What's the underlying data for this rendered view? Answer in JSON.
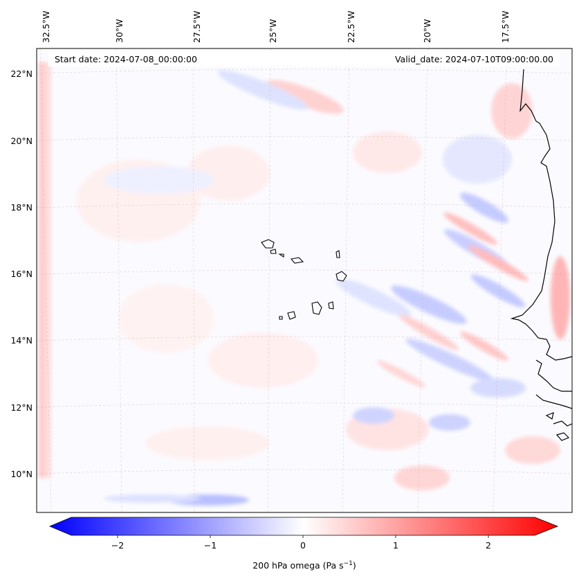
{
  "header": {
    "start_date": "Start date: 2024-07-08_00:00:00",
    "valid_date": "Valid_date: 2024-07-10T09:00:00.00"
  },
  "map": {
    "lon_ticks": [
      "32.5°W",
      "30°W",
      "27.5°W",
      "25°W",
      "22.5°W",
      "20°W",
      "17.5°W"
    ],
    "lat_ticks": [
      "22°N",
      "20°N",
      "18°N",
      "16°N",
      "14°N",
      "12°N",
      "10°N"
    ],
    "field": "200 hPa omega"
  },
  "colorbar": {
    "tick_labels": [
      "−2",
      "−1",
      "0",
      "1",
      "2"
    ],
    "tick_values": [
      -2,
      -1,
      0,
      1,
      2
    ],
    "range": [
      -2.5,
      2.5
    ],
    "label_main": "200 hPa omega (Pa s",
    "label_exp": "−1",
    "label_close": ")",
    "colors": {
      "low": "#0000ff",
      "mid": "#ffffff",
      "high": "#ff0000"
    }
  }
}
